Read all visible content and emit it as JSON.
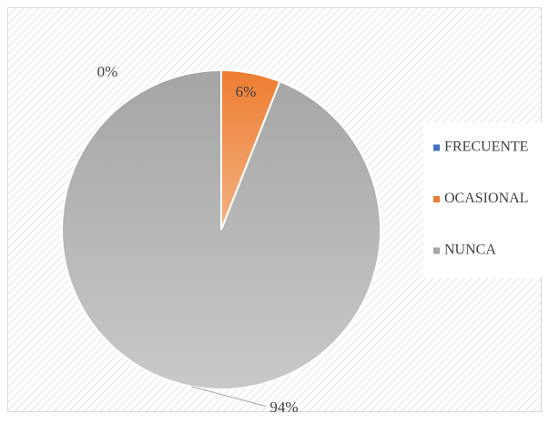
{
  "chart_data": {
    "type": "pie",
    "categories": [
      "FRECUENTE",
      "OCASIONAL",
      "NUNCA"
    ],
    "values": [
      0,
      6,
      94
    ],
    "value_labels": [
      "0%",
      "6%",
      "94%"
    ],
    "colors": [
      "#4472c4",
      "#ed7d31",
      "#a5a5a5"
    ],
    "legend": "right"
  }
}
